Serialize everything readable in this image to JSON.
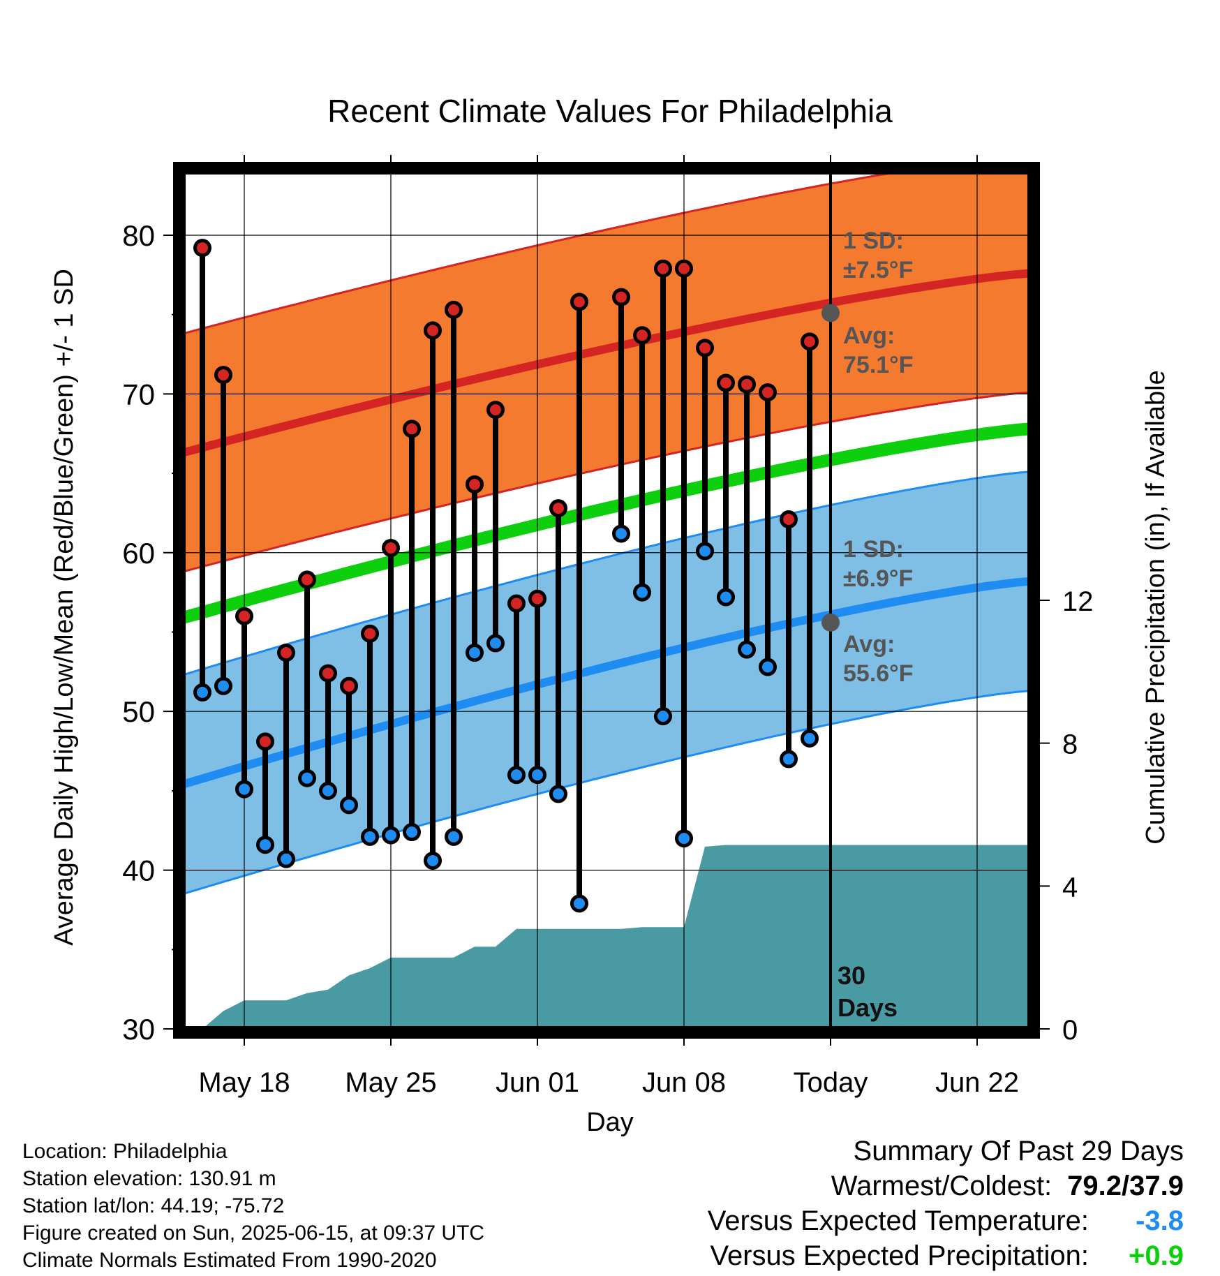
{
  "chart_data": {
    "type": "line",
    "title": "Recent Climate Values For Philadelphia",
    "xlabel": "Day",
    "ylabel_left": "Average Daily High/Low/Mean (Red/Blue/Green) +/- 1 SD",
    "ylabel_right": "Cumulative Precipitation (in), If Available",
    "ylim": [
      30,
      84
    ],
    "y2lim": [
      0,
      24
    ],
    "x_ticks": [
      "May 18",
      "May 25",
      "Jun 01",
      "Jun 08",
      "Today",
      "Jun 22"
    ],
    "y_ticks": [
      "30",
      "40",
      "50",
      "60",
      "70",
      "80"
    ],
    "y2_ticks": [
      "0",
      "4",
      "8",
      "12"
    ],
    "dates": [
      "May 16",
      "May 17",
      "May 18",
      "May 19",
      "May 20",
      "May 21",
      "May 22",
      "May 23",
      "May 24",
      "May 25",
      "May 26",
      "May 27",
      "May 28",
      "May 29",
      "May 30",
      "May 31",
      "Jun 01",
      "Jun 02",
      "Jun 03",
      "Jun 04",
      "Jun 05",
      "Jun 06",
      "Jun 07",
      "Jun 08",
      "Jun 09",
      "Jun 10",
      "Jun 11",
      "Jun 12",
      "Jun 13",
      "Jun 14"
    ],
    "highs": [
      79.2,
      71.2,
      56.0,
      48.1,
      53.7,
      58.3,
      52.4,
      51.6,
      54.9,
      60.3,
      67.8,
      74.0,
      75.3,
      64.3,
      69.0,
      56.8,
      57.1,
      62.8,
      75.8,
      null,
      76.1,
      73.7,
      77.9,
      77.9,
      72.9,
      70.7,
      70.6,
      70.1,
      62.1,
      73.3
    ],
    "lows": [
      51.2,
      51.6,
      45.1,
      41.6,
      40.7,
      45.8,
      45.0,
      44.1,
      42.1,
      42.2,
      42.4,
      40.6,
      42.1,
      53.7,
      54.3,
      46.0,
      46.0,
      44.8,
      37.9,
      null,
      61.2,
      57.5,
      49.7,
      42.0,
      60.1,
      57.2,
      53.9,
      52.8,
      47.0,
      48.3
    ],
    "normal_high": {
      "start": 66.3,
      "end": 77.6,
      "today": 75.1,
      "sd": 7.5
    },
    "normal_low": {
      "start": 45.4,
      "end": 58.2,
      "today": 55.6,
      "sd": 6.9
    },
    "normal_mean": {
      "start": 55.9,
      "end": 67.8
    },
    "cumulative_precip": [
      0.0,
      0.5,
      0.8,
      0.8,
      0.8,
      1.0,
      1.1,
      1.5,
      1.7,
      2.0,
      2.0,
      2.0,
      2.0,
      2.3,
      2.3,
      2.8,
      2.8,
      2.8,
      2.8,
      2.8,
      2.8,
      2.85,
      2.85,
      2.85,
      5.1,
      5.15,
      5.15,
      5.15,
      5.15,
      5.15
    ],
    "annotations": {
      "high_sd_label": "1 SD:",
      "high_sd_value": "±7.5°F",
      "high_avg_label": "Avg:",
      "high_avg_value": "75.1°F",
      "low_sd_label": "1 SD:",
      "low_sd_value": "±6.9°F",
      "low_avg_label": "Avg:",
      "low_avg_value": "55.6°F",
      "days_line1": "30",
      "days_line2": "Days"
    },
    "colors": {
      "high_band": "#f47a2f",
      "high_line": "#d42424",
      "low_band": "#7fbfe6",
      "low_line": "#1e8cf0",
      "mean_line": "#0ecf0e",
      "precip": "#4a9aa3",
      "high_marker": "#d42424",
      "low_marker": "#1e8cf0"
    }
  },
  "info": {
    "location": "Location: Philadelphia",
    "elevation": "Station elevation: 130.91 m",
    "latlon": "Station lat/lon: 44.19; -75.72",
    "created": "Figure created on Sun, 2025-06-15, at 09:37 UTC",
    "normals": "Climate Normals Estimated From 1990-2020"
  },
  "summary": {
    "heading": "Summary Of Past 29 Days",
    "warmest_coldest_label": "Warmest/Coldest:",
    "warmest_coldest_value": "79.2/37.9",
    "temp_label": "Versus Expected Temperature:",
    "temp_value": "-3.8",
    "temp_color": "#1e8cf0",
    "precip_label": "Versus Expected Precipitation:",
    "precip_value": "+0.9",
    "precip_color": "#0ecf0e"
  }
}
